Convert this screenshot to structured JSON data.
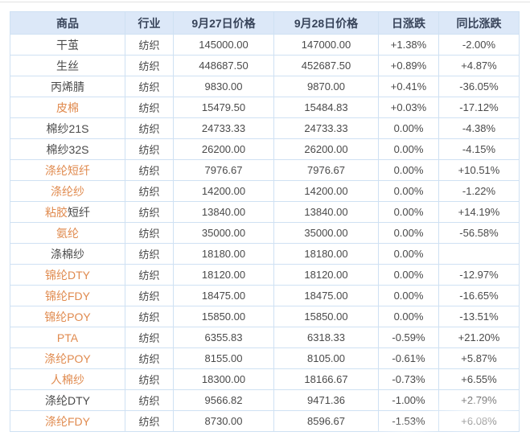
{
  "table": {
    "headers": [
      "商品",
      "行业",
      "9月27日价格",
      "9月28日价格",
      "日涨跌",
      "同比涨跌"
    ],
    "rows": [
      {
        "name_parts": [
          {
            "text": "干茧",
            "link": false
          }
        ],
        "industry": "纺织",
        "price_sep27": "145000.00",
        "price_sep28": "147000.00",
        "day_change": "+1.38%",
        "day_trend": "up",
        "yoy_change": "-2.00%",
        "yoy_trend": "down"
      },
      {
        "name_parts": [
          {
            "text": "生丝",
            "link": false
          }
        ],
        "industry": "纺织",
        "price_sep27": "448687.50",
        "price_sep28": "452687.50",
        "day_change": "+0.89%",
        "day_trend": "up",
        "yoy_change": "+4.87%",
        "yoy_trend": "up"
      },
      {
        "name_parts": [
          {
            "text": "丙烯腈",
            "link": false
          }
        ],
        "industry": "纺织",
        "price_sep27": "9830.00",
        "price_sep28": "9870.00",
        "day_change": "+0.41%",
        "day_trend": "up",
        "yoy_change": "-36.05%",
        "yoy_trend": "down"
      },
      {
        "name_parts": [
          {
            "text": "皮棉",
            "link": true
          }
        ],
        "industry": "纺织",
        "price_sep27": "15479.50",
        "price_sep28": "15484.83",
        "day_change": "+0.03%",
        "day_trend": "up",
        "yoy_change": "-17.12%",
        "yoy_trend": "down"
      },
      {
        "name_parts": [
          {
            "text": "棉纱21S",
            "link": false
          }
        ],
        "industry": "纺织",
        "price_sep27": "24733.33",
        "price_sep28": "24733.33",
        "day_change": "0.00%",
        "day_trend": "flat",
        "yoy_change": "-4.38%",
        "yoy_trend": "down"
      },
      {
        "name_parts": [
          {
            "text": "棉纱32S",
            "link": false
          }
        ],
        "industry": "纺织",
        "price_sep27": "26200.00",
        "price_sep28": "26200.00",
        "day_change": "0.00%",
        "day_trend": "flat",
        "yoy_change": "-4.15%",
        "yoy_trend": "down"
      },
      {
        "name_parts": [
          {
            "text": "涤纶短纤",
            "link": true
          }
        ],
        "industry": "纺织",
        "price_sep27": "7976.67",
        "price_sep28": "7976.67",
        "day_change": "0.00%",
        "day_trend": "flat",
        "yoy_change": "+10.51%",
        "yoy_trend": "up"
      },
      {
        "name_parts": [
          {
            "text": "涤纶纱",
            "link": true
          }
        ],
        "industry": "纺织",
        "price_sep27": "14200.00",
        "price_sep28": "14200.00",
        "day_change": "0.00%",
        "day_trend": "flat",
        "yoy_change": "-1.22%",
        "yoy_trend": "down"
      },
      {
        "name_parts": [
          {
            "text": "粘胶",
            "link": true
          },
          {
            "text": "短纤",
            "link": false
          }
        ],
        "industry": "纺织",
        "price_sep27": "13840.00",
        "price_sep28": "13840.00",
        "day_change": "0.00%",
        "day_trend": "flat",
        "yoy_change": "+14.19%",
        "yoy_trend": "up"
      },
      {
        "name_parts": [
          {
            "text": "氨纶",
            "link": true
          }
        ],
        "industry": "纺织",
        "price_sep27": "35000.00",
        "price_sep28": "35000.00",
        "day_change": "0.00%",
        "day_trend": "flat",
        "yoy_change": "-56.58%",
        "yoy_trend": "down"
      },
      {
        "name_parts": [
          {
            "text": "涤棉纱",
            "link": false
          }
        ],
        "industry": "纺织",
        "price_sep27": "18180.00",
        "price_sep28": "18180.00",
        "day_change": "0.00%",
        "day_trend": "flat",
        "yoy_change": "",
        "yoy_trend": "none"
      },
      {
        "name_parts": [
          {
            "text": "锦纶DTY",
            "link": true
          }
        ],
        "industry": "纺织",
        "price_sep27": "18120.00",
        "price_sep28": "18120.00",
        "day_change": "0.00%",
        "day_trend": "flat",
        "yoy_change": "-12.97%",
        "yoy_trend": "down"
      },
      {
        "name_parts": [
          {
            "text": "锦纶FDY",
            "link": true
          }
        ],
        "industry": "纺织",
        "price_sep27": "18475.00",
        "price_sep28": "18475.00",
        "day_change": "0.00%",
        "day_trend": "flat",
        "yoy_change": "-16.65%",
        "yoy_trend": "down"
      },
      {
        "name_parts": [
          {
            "text": "锦纶POY",
            "link": true
          }
        ],
        "industry": "纺织",
        "price_sep27": "15850.00",
        "price_sep28": "15850.00",
        "day_change": "0.00%",
        "day_trend": "flat",
        "yoy_change": "-13.51%",
        "yoy_trend": "down"
      },
      {
        "name_parts": [
          {
            "text": "PTA",
            "link": true
          }
        ],
        "industry": "纺织",
        "price_sep27": "6355.83",
        "price_sep28": "6318.33",
        "day_change": "-0.59%",
        "day_trend": "down",
        "yoy_change": "+21.20%",
        "yoy_trend": "up"
      },
      {
        "name_parts": [
          {
            "text": "涤纶POY",
            "link": true
          }
        ],
        "industry": "纺织",
        "price_sep27": "8155.00",
        "price_sep28": "8105.00",
        "day_change": "-0.61%",
        "day_trend": "down",
        "yoy_change": "+5.87%",
        "yoy_trend": "up"
      },
      {
        "name_parts": [
          {
            "text": "人棉纱",
            "link": true
          }
        ],
        "industry": "纺织",
        "price_sep27": "18300.00",
        "price_sep28": "18166.67",
        "day_change": "-0.73%",
        "day_trend": "down",
        "yoy_change": "+6.55%",
        "yoy_trend": "up"
      },
      {
        "name_parts": [
          {
            "text": "涤纶DTY",
            "link": false
          }
        ],
        "industry": "纺织",
        "price_sep27": "9566.82",
        "price_sep28": "9471.36",
        "day_change": "-1.00%",
        "day_trend": "down",
        "yoy_change": "+2.79%",
        "yoy_trend": "up"
      },
      {
        "name_parts": [
          {
            "text": "涤纶FDY",
            "link": true
          }
        ],
        "industry": "纺织",
        "price_sep27": "8730.00",
        "price_sep28": "8596.67",
        "day_change": "-1.53%",
        "day_trend": "down",
        "yoy_change": "+6.08%",
        "yoy_trend": "up"
      }
    ],
    "colors": {
      "up": "#c92a2a",
      "down": "#18a018",
      "text": "#4a4a4a",
      "link": "#e08a4e",
      "header_bg": "#dce8f8",
      "header_text": "#38445a",
      "border": "#cfe1f3"
    }
  }
}
